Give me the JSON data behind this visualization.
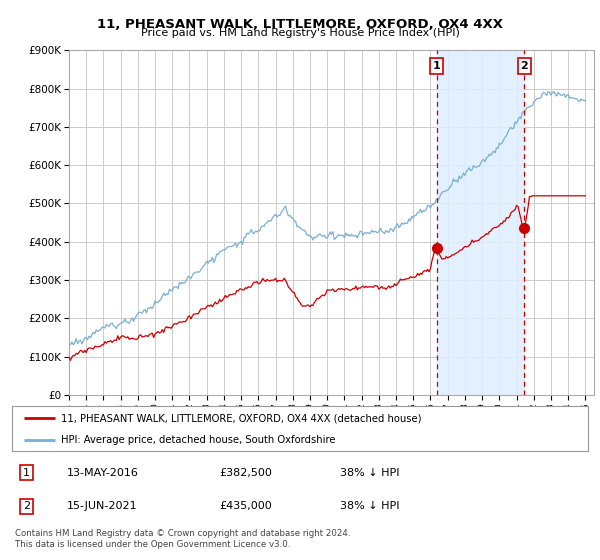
{
  "title": "11, PHEASANT WALK, LITTLEMORE, OXFORD, OX4 4XX",
  "subtitle": "Price paid vs. HM Land Registry's House Price Index (HPI)",
  "legend_line1": "11, PHEASANT WALK, LITTLEMORE, OXFORD, OX4 4XX (detached house)",
  "legend_line2": "HPI: Average price, detached house, South Oxfordshire",
  "annotation1_label": "1",
  "annotation1_date": "13-MAY-2016",
  "annotation1_price": 382500,
  "annotation1_year": 2016.37,
  "annotation2_label": "2",
  "annotation2_date": "15-JUN-2021",
  "annotation2_price": 435000,
  "annotation2_year": 2021.45,
  "footer": "Contains HM Land Registry data © Crown copyright and database right 2024.\nThis data is licensed under the Open Government Licence v3.0.",
  "hpi_color": "#7bafd4",
  "price_color": "#cc0000",
  "dot_color": "#cc0000",
  "vline_color": "#cc0000",
  "shade_color": "#ddeeff",
  "bg_color": "#ffffff",
  "grid_color": "#cccccc",
  "ylim_max": 900000,
  "xlim_start": 1995.0,
  "xlim_end": 2025.5
}
